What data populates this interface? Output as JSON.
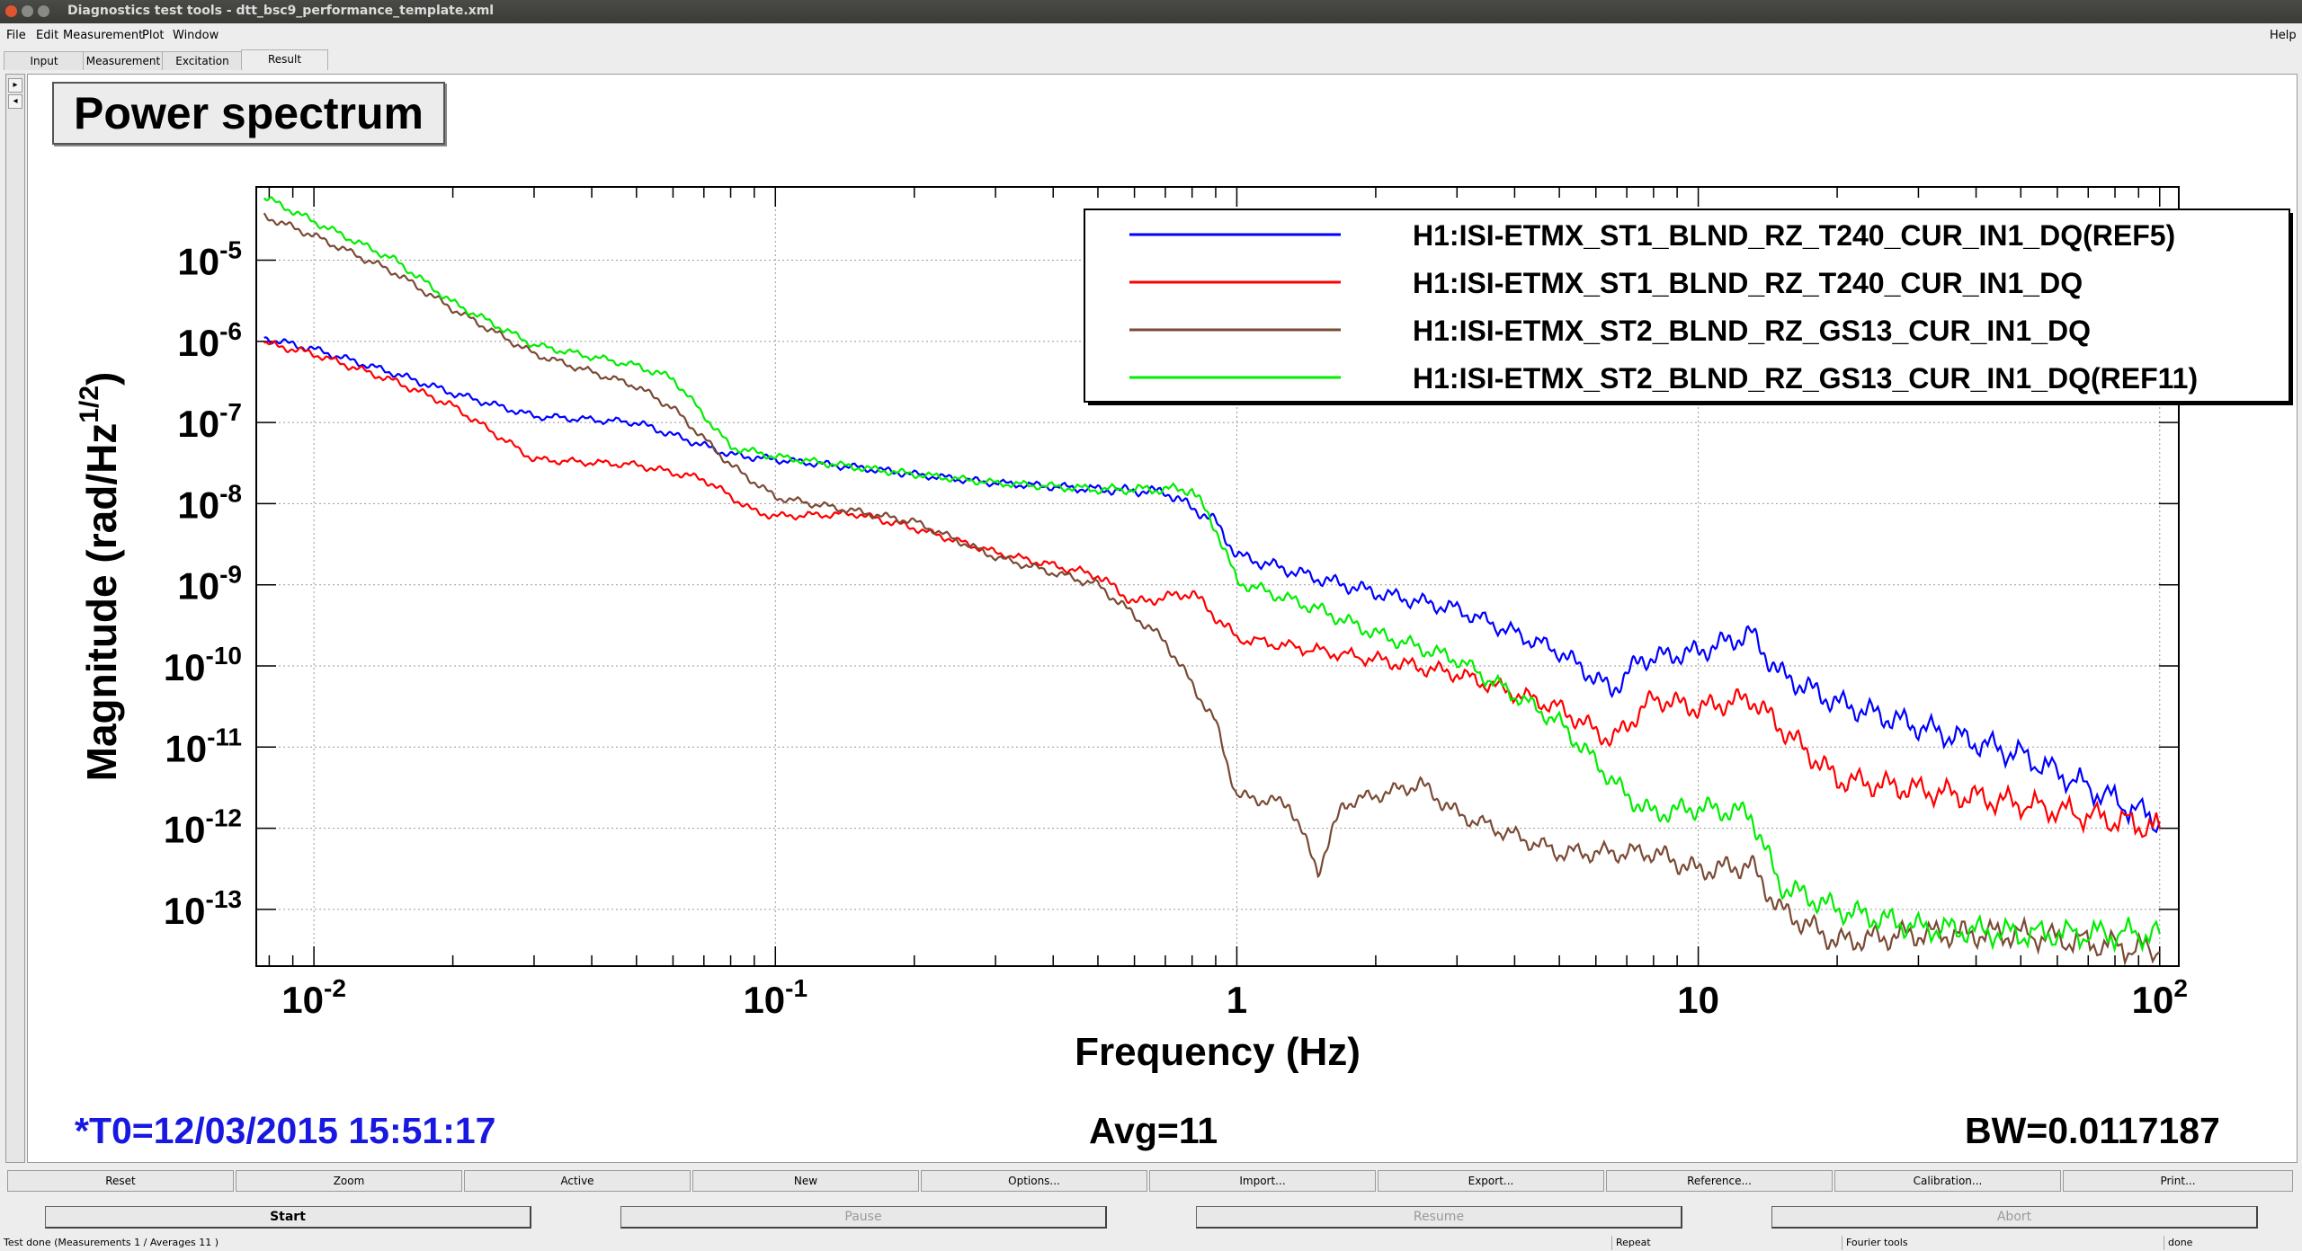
{
  "window": {
    "title": "Diagnostics test tools - dtt_bsc9_performance_template.xml"
  },
  "menu": [
    "File",
    "Edit",
    "Measurement",
    "Plot",
    "Window"
  ],
  "help_label": "Help",
  "tabs": [
    "Input",
    "Measurement",
    "Excitation",
    "Result"
  ],
  "active_tab": "Result",
  "plot": {
    "title": "Power spectrum"
  },
  "chart_data": {
    "type": "line",
    "title": "Power spectrum",
    "xlabel": "Frequency (Hz)",
    "ylabel_main": "Magnitude (rad/Hz",
    "ylabel_sup": "1/2",
    "ylabel_end": ")",
    "x_scale": "log",
    "y_scale": "log",
    "xlim": [
      0.0075,
      110
    ],
    "ylim": [
      2e-14,
      8e-05
    ],
    "x_ticks": [
      {
        "v": 0.01,
        "base": "10",
        "exp": "-2"
      },
      {
        "v": 0.1,
        "base": "10",
        "exp": "-1"
      },
      {
        "v": 1,
        "base": "1",
        "exp": ""
      },
      {
        "v": 10,
        "base": "10",
        "exp": ""
      },
      {
        "v": 100,
        "base": "10",
        "exp": "2"
      }
    ],
    "y_ticks": [
      {
        "v": 1e-13,
        "base": "10",
        "exp": "-13"
      },
      {
        "v": 1e-12,
        "base": "10",
        "exp": "-12"
      },
      {
        "v": 1e-11,
        "base": "10",
        "exp": "-11"
      },
      {
        "v": 1e-10,
        "base": "10",
        "exp": "-10"
      },
      {
        "v": 1e-09,
        "base": "10",
        "exp": "-9"
      },
      {
        "v": 1e-08,
        "base": "10",
        "exp": "-8"
      },
      {
        "v": 1e-07,
        "base": "10",
        "exp": "-7"
      },
      {
        "v": 1e-06,
        "base": "10",
        "exp": "-6"
      },
      {
        "v": 1e-05,
        "base": "10",
        "exp": "-5"
      }
    ],
    "grid": true,
    "legend_position": "top-right",
    "series": [
      {
        "name": "H1:ISI-ETMX_ST1_BLND_RZ_T240_CUR_IN1_DQ(REF5)",
        "color": "#0000ff",
        "points": [
          [
            0.0078,
            1.1e-06
          ],
          [
            0.01,
            8e-07
          ],
          [
            0.015,
            4e-07
          ],
          [
            0.02,
            2.3e-07
          ],
          [
            0.03,
            1.2e-07
          ],
          [
            0.05,
            1e-07
          ],
          [
            0.06,
            7e-08
          ],
          [
            0.08,
            4e-08
          ],
          [
            0.1,
            3.5e-08
          ],
          [
            0.15,
            2.8e-08
          ],
          [
            0.2,
            2.3e-08
          ],
          [
            0.3,
            1.8e-08
          ],
          [
            0.5,
            1.5e-08
          ],
          [
            0.7,
            1.4e-08
          ],
          [
            0.9,
            6e-09
          ],
          [
            1,
            2.3e-09
          ],
          [
            1.5,
            1.2e-09
          ],
          [
            2,
            8e-10
          ],
          [
            3,
            5e-10
          ],
          [
            5,
            1.5e-10
          ],
          [
            6.5,
            5e-11
          ],
          [
            7.5,
            1.2e-10
          ],
          [
            10,
            1.5e-10
          ],
          [
            13,
            2.5e-10
          ],
          [
            15,
            8e-11
          ],
          [
            20,
            3.5e-11
          ],
          [
            30,
            1.8e-11
          ],
          [
            50,
            8e-12
          ],
          [
            100,
            1.2e-12
          ]
        ]
      },
      {
        "name": "H1:ISI-ETMX_ST1_BLND_RZ_T240_CUR_IN1_DQ",
        "color": "#ff0000",
        "points": [
          [
            0.0078,
            9.5e-07
          ],
          [
            0.01,
            7e-07
          ],
          [
            0.015,
            3.2e-07
          ],
          [
            0.02,
            1.6e-07
          ],
          [
            0.03,
            3.5e-08
          ],
          [
            0.05,
            3e-08
          ],
          [
            0.07,
            2e-08
          ],
          [
            0.09,
            8e-09
          ],
          [
            0.1,
            7e-09
          ],
          [
            0.15,
            7.5e-09
          ],
          [
            0.2,
            5e-09
          ],
          [
            0.3,
            2.5e-09
          ],
          [
            0.5,
            1.3e-09
          ],
          [
            0.6,
            6e-10
          ],
          [
            0.8,
            8e-10
          ],
          [
            1,
            2.2e-10
          ],
          [
            2,
            1.2e-10
          ],
          [
            3,
            8e-11
          ],
          [
            5,
            3e-11
          ],
          [
            6.5,
            1.2e-11
          ],
          [
            8,
            4e-11
          ],
          [
            10,
            3e-11
          ],
          [
            13,
            4e-11
          ],
          [
            15,
            1.8e-11
          ],
          [
            20,
            4e-12
          ],
          [
            30,
            3e-12
          ],
          [
            50,
            2e-12
          ],
          [
            100,
            1e-12
          ]
        ]
      },
      {
        "name": "H1:ISI-ETMX_ST2_BLND_RZ_GS13_CUR_IN1_DQ",
        "color": "#7a4a35",
        "points": [
          [
            0.0078,
            3.5e-05
          ],
          [
            0.01,
            2e-05
          ],
          [
            0.015,
            7e-06
          ],
          [
            0.02,
            2.5e-06
          ],
          [
            0.03,
            7e-07
          ],
          [
            0.05,
            2.8e-07
          ],
          [
            0.06,
            1.5e-07
          ],
          [
            0.08,
            3e-08
          ],
          [
            0.1,
            1.2e-08
          ],
          [
            0.15,
            8e-09
          ],
          [
            0.2,
            6e-09
          ],
          [
            0.3,
            2.2e-09
          ],
          [
            0.5,
            1e-09
          ],
          [
            0.7,
            2e-10
          ],
          [
            0.9,
            2e-11
          ],
          [
            1,
            2.5e-12
          ],
          [
            1.3,
            2e-12
          ],
          [
            1.5,
            3e-13
          ],
          [
            1.7,
            2e-12
          ],
          [
            2.5,
            3.5e-12
          ],
          [
            3,
            1.5e-12
          ],
          [
            5,
            5e-13
          ],
          [
            8,
            5e-13
          ],
          [
            10,
            3e-13
          ],
          [
            13,
            3.5e-13
          ],
          [
            15,
            1e-13
          ],
          [
            20,
            4e-14
          ],
          [
            30,
            5e-14
          ],
          [
            50,
            5e-14
          ],
          [
            100,
            3e-14
          ]
        ]
      },
      {
        "name": "H1:ISI-ETMX_ST2_BLND_RZ_GS13_CUR_IN1_DQ(REF11)",
        "color": "#00ee00",
        "points": [
          [
            0.0078,
            6e-05
          ],
          [
            0.01,
            3e-05
          ],
          [
            0.015,
            1e-05
          ],
          [
            0.02,
            3e-06
          ],
          [
            0.03,
            9e-07
          ],
          [
            0.05,
            5e-07
          ],
          [
            0.06,
            3.5e-07
          ],
          [
            0.08,
            5e-08
          ],
          [
            0.1,
            3.8e-08
          ],
          [
            0.15,
            2.8e-08
          ],
          [
            0.2,
            2.3e-08
          ],
          [
            0.3,
            1.8e-08
          ],
          [
            0.5,
            1.5e-08
          ],
          [
            0.8,
            1.5e-08
          ],
          [
            0.9,
            5e-09
          ],
          [
            1,
            1.1e-09
          ],
          [
            1.5,
            5e-10
          ],
          [
            2,
            2.5e-10
          ],
          [
            3,
            1.2e-10
          ],
          [
            5,
            2e-11
          ],
          [
            7,
            2.5e-12
          ],
          [
            8,
            1.5e-12
          ],
          [
            10,
            1.8e-12
          ],
          [
            13,
            1.5e-12
          ],
          [
            15,
            2e-13
          ],
          [
            20,
            1e-13
          ],
          [
            30,
            6e-14
          ],
          [
            50,
            5e-14
          ],
          [
            100,
            5e-14
          ]
        ]
      }
    ]
  },
  "info": {
    "t0": "*T0=12/03/2015 15:51:17",
    "avg": "Avg=11",
    "bw": "BW=0.0117187"
  },
  "button_row1": [
    "Reset",
    "Zoom",
    "Active",
    "New",
    "Options...",
    "Import...",
    "Export...",
    "Reference...",
    "Calibration...",
    "Print..."
  ],
  "button_row2": [
    "Start",
    "Pause",
    "Resume",
    "Abort"
  ],
  "status": {
    "message": "Test done (Measurements 1 / Averages 11 )",
    "repeat": "Repeat",
    "type": "Fourier tools",
    "state": "done"
  }
}
